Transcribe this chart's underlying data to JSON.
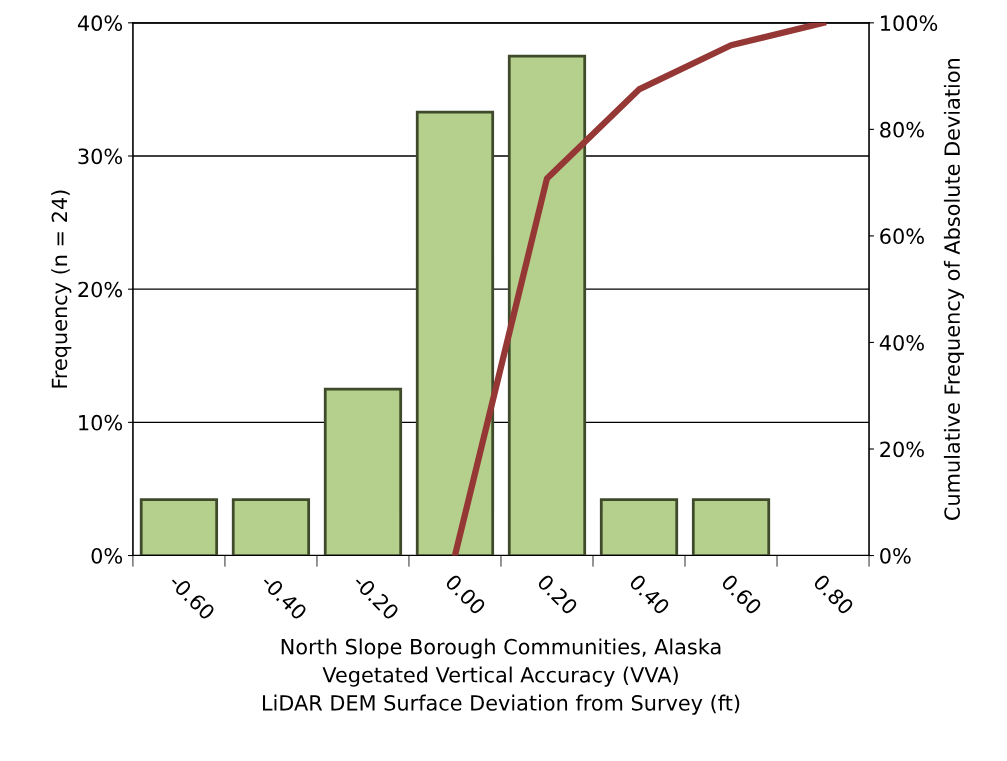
{
  "chart_data": {
    "type": "bar",
    "xlabel": "North Slope Borough Communities, Alaska\nVegetated Vertical Accuracy (VVA)\nLiDAR DEM Surface Deviation from Survey (ft)",
    "ylabel": "Frequency (n = 24)",
    "y2label": "Cumulative Frequency of Absolute Deviation",
    "categories": [
      "-0.60",
      "-0.40",
      "-0.20",
      "0.00",
      "0.20",
      "0.40",
      "0.60",
      "0.80"
    ],
    "series": [
      {
        "color": "#b5cf8c",
        "values": [
          4.2,
          4.2,
          12.5,
          33.3,
          37.5,
          4.2,
          4.2,
          null
        ]
      },
      {
        "type": "line",
        "axis": "y2",
        "color": "#953735",
        "values": [
          null,
          null,
          null,
          0,
          70.8,
          87.5,
          95.8,
          100
        ]
      }
    ],
    "ylim": [
      0,
      40
    ],
    "yticks": [
      {
        "value": 0,
        "label": "0%"
      },
      {
        "value": 10,
        "label": "10%"
      },
      {
        "value": 20,
        "label": "20%"
      },
      {
        "value": 30,
        "label": "30%"
      },
      {
        "value": 40,
        "label": "40%"
      }
    ],
    "y2lim": [
      0,
      100
    ],
    "y2ticks": [
      {
        "value": 0,
        "label": "0%"
      },
      {
        "value": 20,
        "label": "20%"
      },
      {
        "value": 40,
        "label": "40%"
      },
      {
        "value": 60,
        "label": "60%"
      },
      {
        "value": 80,
        "label": "80%"
      },
      {
        "value": 100,
        "label": "100%"
      }
    ],
    "grid": "y"
  }
}
